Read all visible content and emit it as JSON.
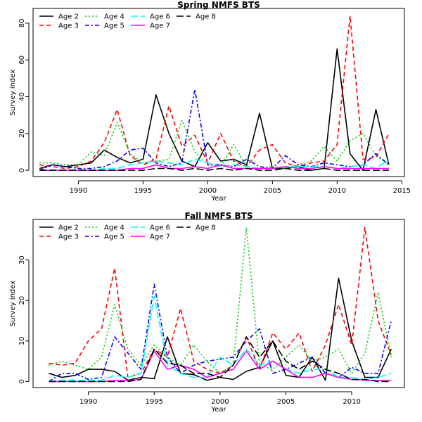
{
  "chart_data": [
    {
      "type": "line",
      "title": "Spring NMFS BTS",
      "xlabel": "Year",
      "ylabel": "Survey index",
      "xlim": [
        1986.5,
        2015.2
      ],
      "ylim": [
        -3.4,
        88
      ],
      "xticks": [
        1990,
        1995,
        2000,
        2005,
        2010,
        2015
      ],
      "yticks": [
        0,
        20,
        40,
        60,
        80
      ],
      "legend": "top-left",
      "x": [
        1987,
        1988,
        1989,
        1990,
        1991,
        1992,
        1993,
        1994,
        1995,
        1996,
        1997,
        1998,
        1999,
        2000,
        2001,
        2002,
        2003,
        2004,
        2005,
        2006,
        2007,
        2008,
        2009,
        2010,
        2011,
        2012,
        2013,
        2014
      ],
      "series": [
        {
          "name": "Age 2",
          "color": "#000000",
          "dash": "solid",
          "values": [
            1,
            3,
            2,
            3,
            4,
            11,
            7,
            4,
            6,
            41,
            20,
            5,
            2,
            15,
            5,
            6,
            3,
            31,
            1,
            1,
            2,
            0,
            1,
            66,
            9,
            0,
            33,
            3
          ]
        },
        {
          "name": "Age 3",
          "color": "#ff0000",
          "dash": "dashed",
          "values": [
            3,
            2,
            1,
            2,
            5,
            15,
            33,
            8,
            3,
            6,
            35,
            13,
            19,
            4,
            20,
            5,
            2,
            11,
            14,
            4,
            2,
            4,
            5,
            14,
            84,
            6,
            7,
            20
          ]
        },
        {
          "name": "Age 4",
          "color": "#00cd00",
          "dash": "dotted",
          "values": [
            4,
            4,
            3,
            3,
            10,
            8,
            26,
            9,
            4,
            5,
            6,
            27,
            10,
            3,
            2,
            14,
            2,
            1,
            2,
            1,
            3,
            5,
            13,
            5,
            16,
            20,
            8,
            3
          ]
        },
        {
          "name": "Age 5",
          "color": "#0000ff",
          "dash": "dotdash",
          "values": [
            0,
            3,
            2,
            1,
            1,
            2,
            5,
            11,
            12,
            4,
            2,
            4,
            44,
            3,
            3,
            2,
            6,
            2,
            1,
            8,
            3,
            2,
            4,
            3,
            2,
            3,
            9,
            3
          ]
        },
        {
          "name": "Age 6",
          "color": "#00ffff",
          "dash": "longdash",
          "values": [
            0,
            0,
            0,
            0,
            0,
            1,
            1,
            3,
            4,
            5,
            4,
            3,
            6,
            4,
            2,
            3,
            2,
            1,
            1,
            2,
            2,
            2,
            2,
            1,
            2,
            3,
            1,
            6
          ]
        },
        {
          "name": "Age 7",
          "color": "#ff00ff",
          "dash": "solid",
          "values": [
            0,
            0,
            0,
            0,
            0,
            0,
            0,
            1,
            1,
            3,
            1,
            1,
            2,
            1,
            3,
            1,
            1,
            1,
            1,
            2,
            1,
            1,
            2,
            1,
            1,
            1,
            1,
            1
          ]
        },
        {
          "name": "Age 8",
          "color": "#000000",
          "dash": "longdash",
          "values": [
            0,
            0,
            0,
            0,
            0,
            0,
            0,
            0,
            0,
            1,
            1,
            0,
            1,
            0,
            1,
            0,
            1,
            0,
            0,
            1,
            0,
            0,
            1,
            0,
            0,
            0,
            0,
            0
          ]
        }
      ]
    },
    {
      "type": "line",
      "title": "Fall NMFS BTS",
      "xlabel": "Year",
      "ylabel": "Survey index",
      "xlim": [
        1985.8,
        2014.0
      ],
      "ylim": [
        -1.5,
        40
      ],
      "xticks": [
        1990,
        1995,
        2000,
        2005,
        2010
      ],
      "yticks": [
        0,
        10,
        20,
        30
      ],
      "legend": "top-left",
      "x": [
        1987,
        1988,
        1989,
        1990,
        1991,
        1992,
        1993,
        1994,
        1995,
        1996,
        1997,
        1998,
        1999,
        2000,
        2001,
        2002,
        2003,
        2004,
        2005,
        2006,
        2007,
        2008,
        2009,
        2010,
        2011,
        2012,
        2013
      ],
      "series": [
        {
          "name": "Age 2",
          "color": "#000000",
          "dash": "solid",
          "values": [
            2,
            1,
            1.5,
            3,
            3,
            2.5,
            0.3,
            1,
            0.7,
            11,
            2,
            1.7,
            0.3,
            1,
            0.5,
            2.5,
            3.5,
            10,
            1.5,
            1,
            6,
            0.3,
            25.5,
            10,
            1,
            1,
            8
          ]
        },
        {
          "name": "Age 3",
          "color": "#ff0000",
          "dash": "dashed",
          "values": [
            4.5,
            4,
            4.5,
            10,
            13,
            28,
            1,
            2,
            8,
            6,
            18,
            5,
            3,
            2,
            4,
            11,
            3,
            12,
            8,
            12,
            2.5,
            9,
            19,
            9,
            38,
            15,
            6.5
          ]
        },
        {
          "name": "Age 4",
          "color": "#00cd00",
          "dash": "dotted",
          "values": [
            4,
            5,
            4,
            3,
            6,
            19,
            8,
            4,
            9,
            6,
            4,
            9,
            5,
            2,
            4,
            38,
            4,
            3,
            6,
            9,
            5,
            6,
            8,
            2,
            7,
            22,
            6
          ]
        },
        {
          "name": "Age 5",
          "color": "#0000ff",
          "dash": "dotdash",
          "values": [
            0,
            2,
            2,
            0.5,
            1,
            11,
            7,
            3,
            24,
            6,
            2,
            4,
            5,
            5.5,
            6,
            10,
            13,
            2,
            3,
            4.5,
            6,
            2,
            1,
            3.5,
            2,
            2,
            15
          ]
        },
        {
          "name": "Age 6",
          "color": "#00ffff",
          "dash": "longdash",
          "values": [
            0,
            0.3,
            0.3,
            0.2,
            0.3,
            1.5,
            1,
            2,
            21,
            4,
            2,
            1,
            1,
            6,
            4,
            8,
            4,
            5,
            3,
            2,
            3,
            3,
            1,
            1,
            0.5,
            1,
            2
          ]
        },
        {
          "name": "Age 7",
          "color": "#ff00ff",
          "dash": "solid",
          "values": [
            0,
            0,
            0,
            0,
            0,
            0.2,
            0.2,
            0.5,
            7.5,
            3,
            4,
            3,
            1,
            2,
            3,
            7.5,
            3,
            5,
            3,
            1,
            1,
            2,
            1,
            0.5,
            0.3,
            0.2,
            0.2
          ]
        },
        {
          "name": "Age 8",
          "color": "#000000",
          "dash": "longdash",
          "values": [
            0,
            0,
            0,
            0,
            0,
            0,
            0,
            0.5,
            8,
            4.5,
            4,
            2,
            2,
            1,
            4,
            11,
            6,
            10,
            5,
            3,
            5,
            3,
            2,
            0.5,
            0.5,
            0,
            0
          ]
        }
      ]
    }
  ]
}
